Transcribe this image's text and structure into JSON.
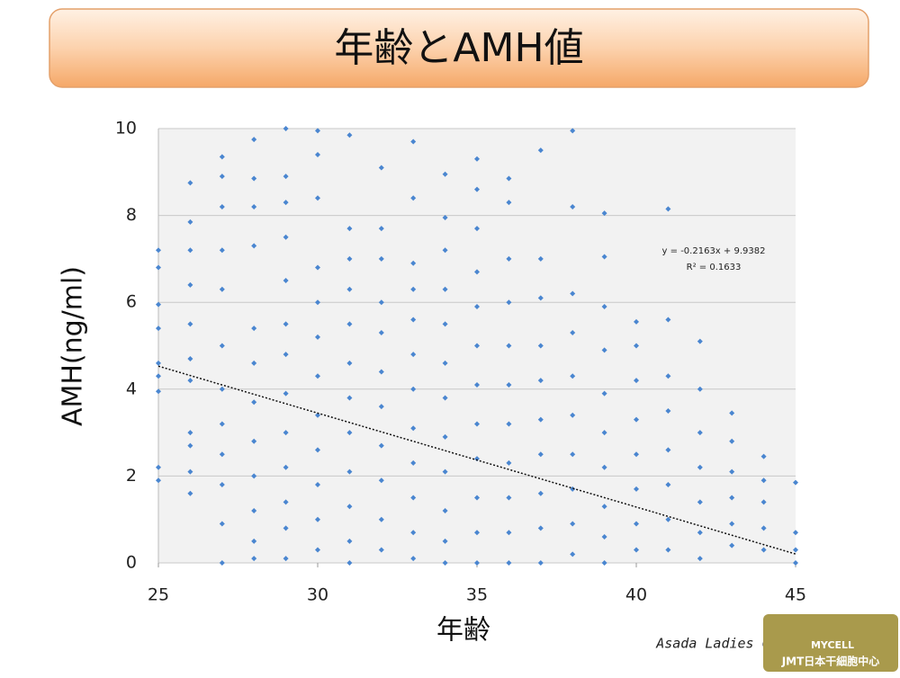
{
  "chart_data": {
    "type": "scatter",
    "title": "年齢とAMH値",
    "x_label": "年齢",
    "y_label": "AMH(ng/ml)",
    "color": "#4a86d0",
    "xlim": [
      25,
      45
    ],
    "ylim": [
      0,
      10
    ],
    "xticks": [
      25,
      30,
      35,
      40,
      45
    ],
    "yticks": [
      0,
      2,
      4,
      6,
      8,
      10
    ],
    "grid": true,
    "x": [
      25,
      25,
      25,
      25,
      25,
      25,
      25,
      25,
      25,
      26,
      26,
      26,
      26,
      26,
      26,
      26,
      26,
      26,
      26,
      26,
      27,
      27,
      27,
      27,
      27,
      27,
      27,
      27,
      27,
      27,
      27,
      27,
      28,
      28,
      28,
      28,
      28,
      28,
      28,
      28,
      28,
      28,
      28,
      28,
      29,
      29,
      29,
      29,
      29,
      29,
      29,
      29,
      29,
      29,
      29,
      29,
      29,
      30,
      30,
      30,
      30,
      30,
      30,
      30,
      30,
      30,
      30,
      30,
      30,
      31,
      31,
      31,
      31,
      31,
      31,
      31,
      31,
      31,
      31,
      31,
      31,
      32,
      32,
      32,
      32,
      32,
      32,
      32,
      32,
      32,
      32,
      32,
      33,
      33,
      33,
      33,
      33,
      33,
      33,
      33,
      33,
      33,
      33,
      33,
      34,
      34,
      34,
      34,
      34,
      34,
      34,
      34,
      34,
      34,
      34,
      34,
      35,
      35,
      35,
      35,
      35,
      35,
      35,
      35,
      35,
      35,
      35,
      35,
      36,
      36,
      36,
      36,
      36,
      36,
      36,
      36,
      36,
      36,
      36,
      37,
      37,
      37,
      37,
      37,
      37,
      37,
      37,
      37,
      37,
      38,
      38,
      38,
      38,
      38,
      38,
      38,
      38,
      38,
      38,
      39,
      39,
      39,
      39,
      39,
      39,
      39,
      39,
      39,
      39,
      40,
      40,
      40,
      40,
      40,
      40,
      40,
      40,
      41,
      41,
      41,
      41,
      41,
      41,
      41,
      41,
      42,
      42,
      42,
      42,
      42,
      42,
      42,
      43,
      43,
      43,
      43,
      43,
      43,
      44,
      44,
      44,
      44,
      44,
      45,
      45,
      45,
      45
    ],
    "values": [
      7.2,
      6.8,
      5.95,
      5.4,
      4.6,
      4.3,
      3.95,
      2.2,
      1.9,
      8.75,
      7.85,
      7.2,
      6.4,
      5.5,
      4.7,
      4.2,
      3.0,
      2.7,
      2.1,
      1.6,
      9.35,
      8.9,
      8.2,
      7.2,
      6.3,
      5.0,
      4.0,
      3.2,
      2.5,
      1.8,
      0.9,
      0,
      9.75,
      8.85,
      8.2,
      7.3,
      5.4,
      4.6,
      3.7,
      2.8,
      2.0,
      1.2,
      0.5,
      0.1,
      10,
      8.9,
      8.3,
      7.5,
      6.5,
      5.5,
      4.8,
      3.9,
      3.0,
      2.2,
      1.4,
      0.8,
      0.1,
      9.95,
      9.4,
      8.4,
      6.8,
      6.0,
      5.2,
      4.3,
      3.4,
      2.6,
      1.8,
      1.0,
      0.3,
      9.85,
      7.7,
      7.0,
      6.3,
      5.5,
      4.6,
      3.8,
      3.0,
      2.1,
      1.3,
      0.5,
      0,
      9.1,
      7.7,
      7.0,
      6.0,
      5.3,
      4.4,
      3.6,
      2.7,
      1.9,
      1.0,
      0.3,
      9.7,
      8.4,
      6.9,
      6.3,
      5.6,
      4.8,
      4.0,
      3.1,
      2.3,
      1.5,
      0.7,
      0.1,
      8.95,
      7.95,
      7.2,
      6.3,
      5.5,
      4.6,
      3.8,
      2.9,
      2.1,
      1.2,
      0.5,
      0,
      9.3,
      8.6,
      7.7,
      6.7,
      5.9,
      5.0,
      4.1,
      3.2,
      2.4,
      1.5,
      0.7,
      0,
      8.85,
      8.3,
      7.0,
      6.0,
      5.0,
      4.1,
      3.2,
      2.3,
      1.5,
      0.7,
      0,
      9.5,
      7.0,
      6.1,
      5.0,
      4.2,
      3.3,
      2.5,
      1.6,
      0.8,
      0,
      9.95,
      8.2,
      6.2,
      5.3,
      4.3,
      3.4,
      2.5,
      1.7,
      0.9,
      0.2,
      8.05,
      7.05,
      5.9,
      4.9,
      3.9,
      3.0,
      2.2,
      1.3,
      0.6,
      0,
      5.55,
      5.0,
      4.2,
      3.3,
      2.5,
      1.7,
      0.9,
      0.3,
      8.15,
      5.6,
      4.3,
      3.5,
      2.6,
      1.8,
      1.0,
      0.3,
      5.1,
      4.0,
      3.0,
      2.2,
      1.4,
      0.7,
      0.1,
      3.45,
      2.8,
      2.1,
      1.5,
      0.9,
      0.4,
      2.45,
      1.9,
      1.4,
      0.8,
      0.3,
      1.85,
      0.7,
      0.3,
      0
    ],
    "trendline": {
      "slope": -0.2163,
      "intercept": 9.9382,
      "equation": "y = -0.2163x + 9.9382",
      "r2_label": "R² = 0.1633"
    },
    "source": "Asada Ladies Clinic",
    "logo": [
      "MYCELL",
      "JMT日本干細胞中心"
    ]
  }
}
